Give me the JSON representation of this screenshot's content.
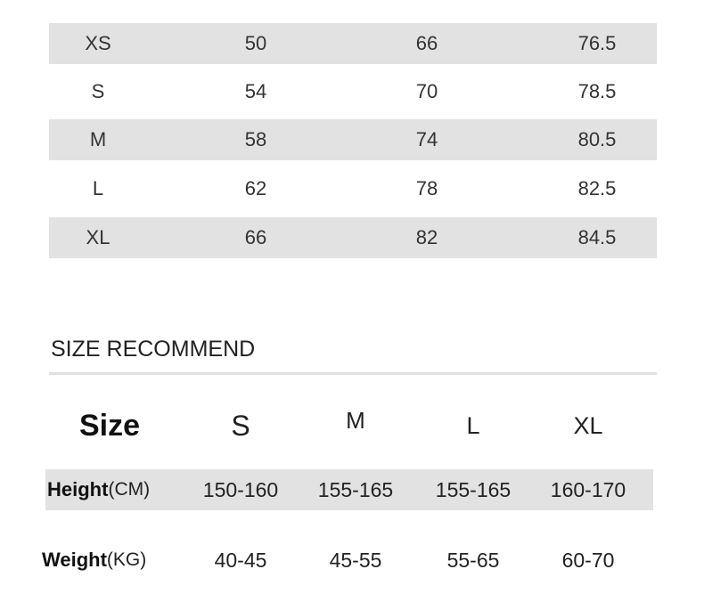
{
  "measurements": {
    "rows": [
      {
        "size": "XS",
        "c1": "50",
        "c2": "66",
        "c3": "76.5"
      },
      {
        "size": "S",
        "c1": "54",
        "c2": "70",
        "c3": "78.5"
      },
      {
        "size": "M",
        "c1": "58",
        "c2": "74",
        "c3": "80.5"
      },
      {
        "size": "L",
        "c1": "62",
        "c2": "78",
        "c3": "82.5"
      },
      {
        "size": "XL",
        "c1": "66",
        "c2": "82",
        "c3": "84.5"
      }
    ]
  },
  "recommend": {
    "title": "SIZE RECOMMEND",
    "header": {
      "label": "Size",
      "sizes": [
        "S",
        "M",
        "L",
        "XL"
      ]
    },
    "height": {
      "label": "Height",
      "unit": "(CM)",
      "values": [
        "150-160",
        "155-165",
        "155-165",
        "160-170"
      ]
    },
    "weight": {
      "label": "Weight",
      "unit": "(KG)",
      "values": [
        "40-45",
        "45-55",
        "55-65",
        "60-70"
      ]
    }
  },
  "colors": {
    "stripe": "#e2e2e2",
    "text": "#333333"
  }
}
